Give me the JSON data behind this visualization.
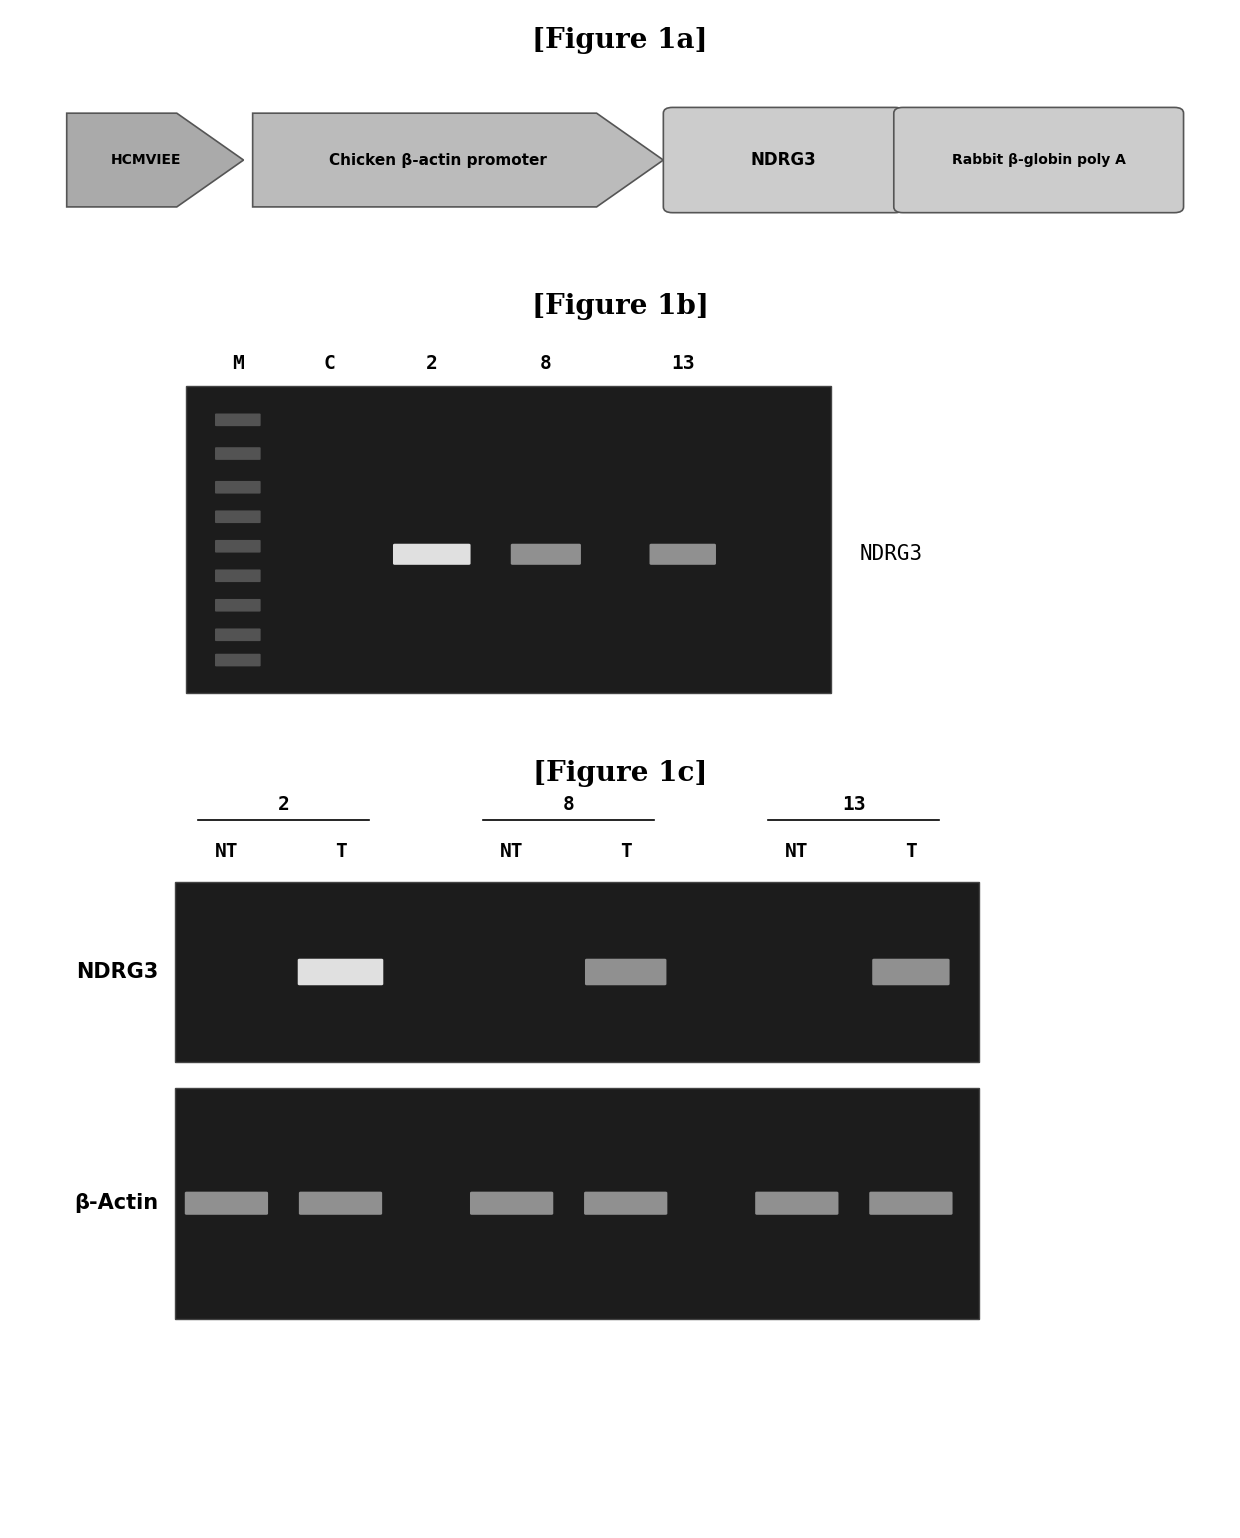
{
  "fig_title_1a": "[Figure 1a]",
  "fig_title_1b": "[Figure 1b]",
  "fig_title_1c": "[Figure 1c]",
  "arrow1_label": "HCMVIEE",
  "arrow2_label": "Chicken β-actin promoter",
  "box1_label": "NDRG3",
  "box2_label": "Rabbit β-globin poly A",
  "fig1b_lane_labels": [
    "M",
    "C",
    "2",
    "8",
    "13"
  ],
  "fig1b_side_label": "NDRG3",
  "fig1c_group_labels": [
    "2",
    "8",
    "13"
  ],
  "fig1c_sublabels": [
    "NT",
    "T",
    "NT",
    "T",
    "NT",
    "T"
  ],
  "fig1c_row_labels": [
    "NDRG3",
    "β-Actin"
  ],
  "white": "#ffffff",
  "black": "#000000",
  "dark_gray": "#555555",
  "gel_bg": "#1c1c1c",
  "band_bright": "#e0e0e0",
  "band_dim": "#909090",
  "ladder_color": "#666666",
  "arrow_gray1": "#aaaaaa",
  "arrow_gray2": "#bbbbbb",
  "box_gray": "#cccccc",
  "title_fontsize": 20,
  "label_fontsize": 14,
  "side_label_fontsize": 15
}
